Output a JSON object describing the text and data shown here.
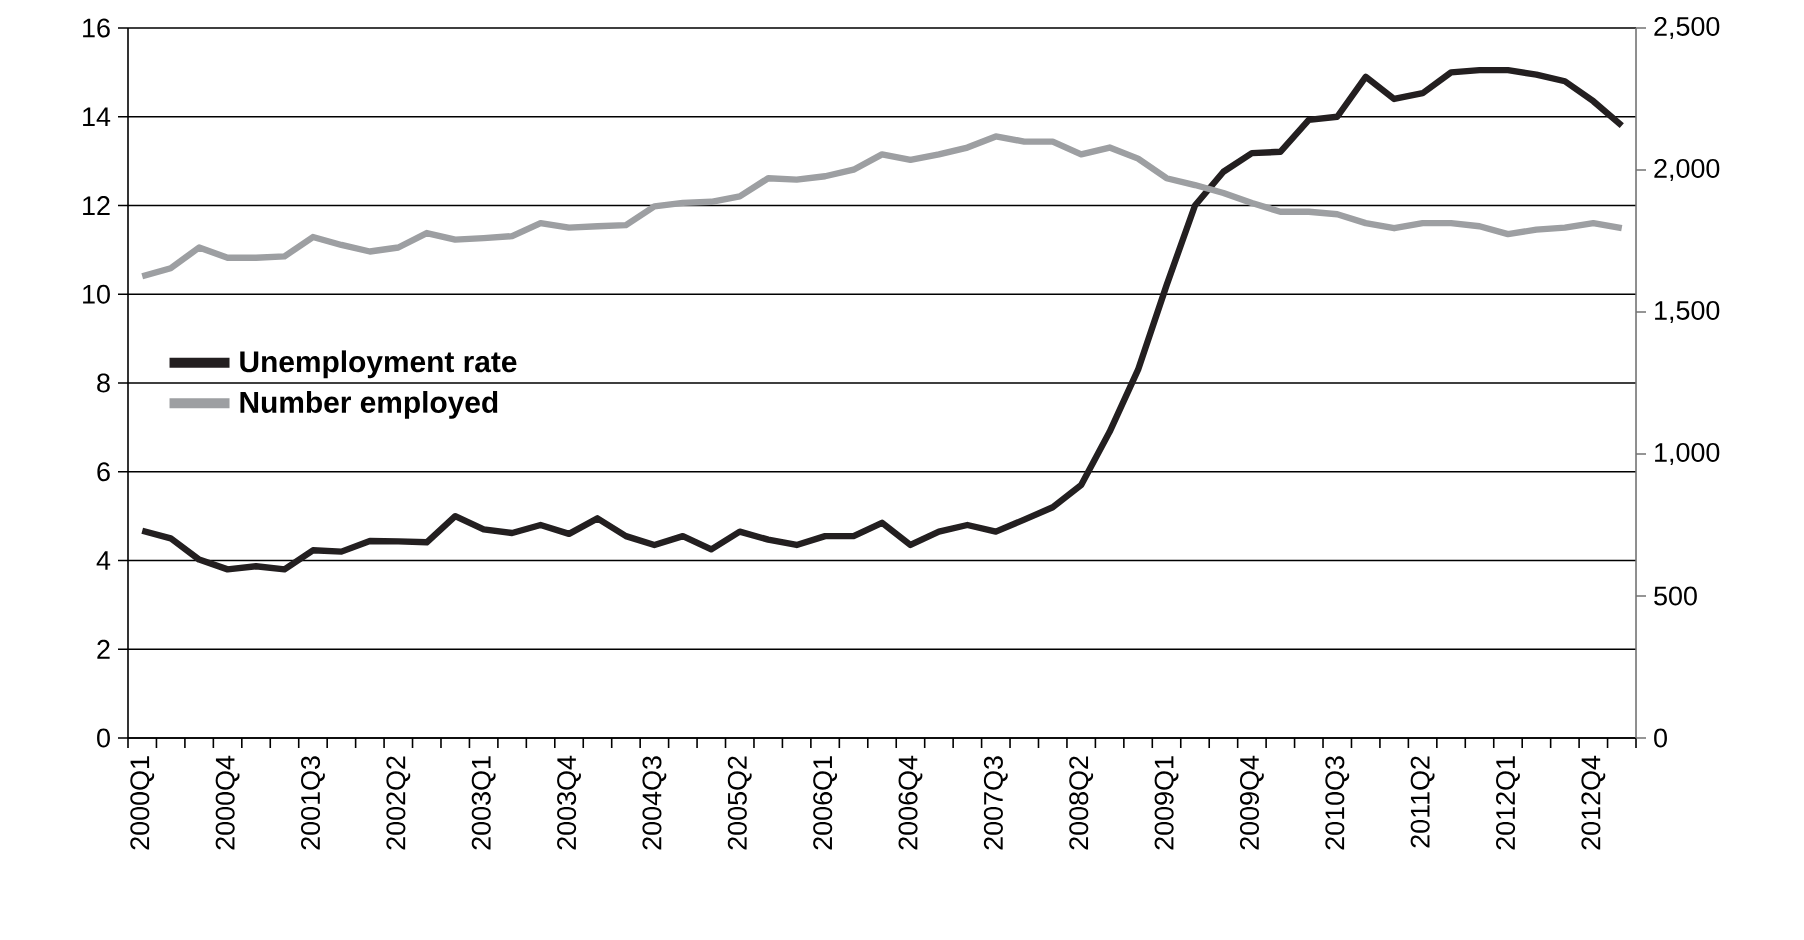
{
  "chart_data": {
    "type": "line",
    "categories": [
      "2000Q1",
      null,
      null,
      "2000Q4",
      null,
      null,
      "2001Q3",
      null,
      null,
      "2002Q2",
      null,
      null,
      "2003Q1",
      null,
      null,
      "2003Q4",
      null,
      null,
      "2004Q3",
      null,
      null,
      "2005Q2",
      null,
      null,
      "2006Q1",
      null,
      null,
      "2006Q4",
      null,
      null,
      "2007Q3",
      null,
      null,
      "2008Q2",
      null,
      null,
      "2009Q1",
      null,
      null,
      "2009Q4",
      null,
      null,
      "2010Q3",
      null,
      null,
      "2011Q2",
      null,
      null,
      "2012Q1",
      null,
      null,
      "2012Q4",
      null
    ],
    "series": [
      {
        "name": "Unemployment rate",
        "color": "#231f20",
        "values": [
          4.67,
          4.5,
          4.02,
          3.8,
          3.87,
          3.8,
          4.23,
          4.2,
          4.44,
          4.43,
          4.41,
          5.0,
          4.7,
          4.62,
          4.8,
          4.6,
          4.95,
          4.55,
          4.35,
          4.55,
          4.25,
          4.65,
          4.47,
          4.35,
          4.55,
          4.55,
          4.85,
          4.35,
          4.65,
          4.8,
          4.65,
          4.92,
          5.2,
          5.7,
          6.9,
          8.3,
          10.2,
          12.0,
          12.76,
          13.18,
          13.21,
          13.93,
          14.0,
          14.9,
          14.4,
          14.53,
          15.0,
          15.05,
          15.05,
          14.95,
          14.8,
          14.35,
          13.8
        ]
      },
      {
        "name": "Number employed",
        "color": "#9d9fa2",
        "axis": "y2",
        "values": [
          1626,
          1654,
          1727,
          1691,
          1691,
          1696,
          1764,
          1736,
          1713,
          1727,
          1778,
          1755,
          1760,
          1767,
          1813,
          1797,
          1802,
          1806,
          1872,
          1884,
          1888,
          1907,
          1971,
          1966,
          1978,
          2001,
          2055,
          2036,
          2055,
          2079,
          2118,
          2100,
          2100,
          2055,
          2079,
          2040,
          1971,
          1947,
          1919,
          1884,
          1853,
          1853,
          1844,
          1813,
          1795,
          1813,
          1813,
          1802,
          1774,
          1790,
          1797,
          1813,
          1795
        ]
      }
    ],
    "ylim": [
      0,
      16
    ],
    "yticks": [
      0,
      2,
      4,
      6,
      8,
      10,
      12,
      14,
      16
    ],
    "y2lim": [
      0,
      2500
    ],
    "y2ticks": [
      0,
      500,
      {
        "value": 1000,
        "label": "1,000"
      },
      {
        "value": 1500,
        "label": "1,500"
      },
      {
        "value": 2000,
        "label": "2,000"
      },
      {
        "value": 2500,
        "label": "2,500"
      }
    ],
    "grid": "y",
    "legend": "left",
    "marker": "none",
    "line_style": "solid"
  }
}
